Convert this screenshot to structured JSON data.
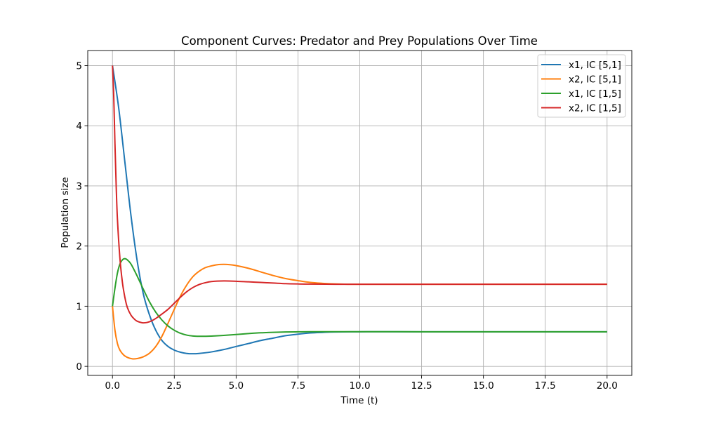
{
  "chart_data": {
    "type": "line",
    "title": "Component Curves: Predator and Prey Populations Over Time",
    "xlabel": "Time (t)",
    "ylabel": "Population size",
    "xlim": [
      -1.0,
      21.0
    ],
    "ylim": [
      -0.15,
      5.25
    ],
    "x_ticks": [
      0.0,
      2.5,
      5.0,
      7.5,
      10.0,
      12.5,
      15.0,
      17.5,
      20.0
    ],
    "x_tick_labels": [
      "0.0",
      "2.5",
      "5.0",
      "7.5",
      "10.0",
      "12.5",
      "15.0",
      "17.5",
      "20.0"
    ],
    "y_ticks": [
      0,
      1,
      2,
      3,
      4,
      5
    ],
    "y_tick_labels": [
      "0",
      "1",
      "2",
      "3",
      "4",
      "5"
    ],
    "grid": true,
    "legend_position": "top-right",
    "series": [
      {
        "name": "x1, IC [5,1]",
        "color": "#1f77b4",
        "points": [
          [
            0,
            5.0
          ],
          [
            0.25,
            4.3
          ],
          [
            0.5,
            3.4
          ],
          [
            0.75,
            2.5
          ],
          [
            1.0,
            1.75
          ],
          [
            1.25,
            1.2
          ],
          [
            1.5,
            0.85
          ],
          [
            1.75,
            0.6
          ],
          [
            2.0,
            0.43
          ],
          [
            2.25,
            0.33
          ],
          [
            2.5,
            0.27
          ],
          [
            2.75,
            0.235
          ],
          [
            3.0,
            0.215
          ],
          [
            3.25,
            0.21
          ],
          [
            3.5,
            0.215
          ],
          [
            4.0,
            0.24
          ],
          [
            4.5,
            0.28
          ],
          [
            5.0,
            0.33
          ],
          [
            5.5,
            0.38
          ],
          [
            6.0,
            0.43
          ],
          [
            6.5,
            0.47
          ],
          [
            7.0,
            0.51
          ],
          [
            7.5,
            0.535
          ],
          [
            8.0,
            0.555
          ],
          [
            8.5,
            0.565
          ],
          [
            9.0,
            0.572
          ],
          [
            10.0,
            0.575
          ],
          [
            11.0,
            0.576
          ],
          [
            12.5,
            0.575
          ],
          [
            15.0,
            0.575
          ],
          [
            17.5,
            0.575
          ],
          [
            20.0,
            0.575
          ]
        ]
      },
      {
        "name": "x2, IC [5,1]",
        "color": "#ff7f0e",
        "points": [
          [
            0,
            1.0
          ],
          [
            0.1,
            0.6
          ],
          [
            0.2,
            0.38
          ],
          [
            0.3,
            0.27
          ],
          [
            0.45,
            0.19
          ],
          [
            0.6,
            0.15
          ],
          [
            0.8,
            0.125
          ],
          [
            1.0,
            0.13
          ],
          [
            1.25,
            0.16
          ],
          [
            1.5,
            0.22
          ],
          [
            1.75,
            0.33
          ],
          [
            2.0,
            0.5
          ],
          [
            2.25,
            0.72
          ],
          [
            2.5,
            0.95
          ],
          [
            2.75,
            1.17
          ],
          [
            3.0,
            1.35
          ],
          [
            3.25,
            1.49
          ],
          [
            3.5,
            1.58
          ],
          [
            3.75,
            1.64
          ],
          [
            4.0,
            1.67
          ],
          [
            4.25,
            1.69
          ],
          [
            4.5,
            1.695
          ],
          [
            4.75,
            1.69
          ],
          [
            5.0,
            1.675
          ],
          [
            5.5,
            1.63
          ],
          [
            6.0,
            1.57
          ],
          [
            6.5,
            1.51
          ],
          [
            7.0,
            1.46
          ],
          [
            7.5,
            1.425
          ],
          [
            8.0,
            1.395
          ],
          [
            8.5,
            1.38
          ],
          [
            9.0,
            1.37
          ],
          [
            9.5,
            1.365
          ],
          [
            10.0,
            1.365
          ],
          [
            11.0,
            1.365
          ],
          [
            12.5,
            1.365
          ],
          [
            15.0,
            1.365
          ],
          [
            17.5,
            1.365
          ],
          [
            20.0,
            1.365
          ]
        ]
      },
      {
        "name": "x1, IC [1,5]",
        "color": "#2ca02c",
        "points": [
          [
            0,
            1.0
          ],
          [
            0.1,
            1.3
          ],
          [
            0.2,
            1.55
          ],
          [
            0.3,
            1.7
          ],
          [
            0.4,
            1.77
          ],
          [
            0.5,
            1.79
          ],
          [
            0.6,
            1.77
          ],
          [
            0.75,
            1.7
          ],
          [
            1.0,
            1.5
          ],
          [
            1.25,
            1.28
          ],
          [
            1.5,
            1.07
          ],
          [
            1.75,
            0.9
          ],
          [
            2.0,
            0.77
          ],
          [
            2.25,
            0.67
          ],
          [
            2.5,
            0.6
          ],
          [
            2.75,
            0.55
          ],
          [
            3.0,
            0.52
          ],
          [
            3.25,
            0.505
          ],
          [
            3.5,
            0.5
          ],
          [
            3.75,
            0.5
          ],
          [
            4.0,
            0.503
          ],
          [
            4.5,
            0.515
          ],
          [
            5.0,
            0.53
          ],
          [
            5.5,
            0.545
          ],
          [
            6.0,
            0.558
          ],
          [
            6.5,
            0.566
          ],
          [
            7.0,
            0.571
          ],
          [
            7.5,
            0.574
          ],
          [
            8.0,
            0.576
          ],
          [
            9.0,
            0.576
          ],
          [
            10.0,
            0.576
          ],
          [
            12.5,
            0.575
          ],
          [
            15.0,
            0.575
          ],
          [
            17.5,
            0.575
          ],
          [
            20.0,
            0.575
          ]
        ]
      },
      {
        "name": "x2, IC [1,5]",
        "color": "#d62728",
        "points": [
          [
            0,
            5.0
          ],
          [
            0.05,
            4.5
          ],
          [
            0.1,
            3.7
          ],
          [
            0.15,
            3.0
          ],
          [
            0.2,
            2.45
          ],
          [
            0.3,
            1.8
          ],
          [
            0.4,
            1.4
          ],
          [
            0.5,
            1.15
          ],
          [
            0.6,
            0.98
          ],
          [
            0.75,
            0.85
          ],
          [
            0.9,
            0.78
          ],
          [
            1.0,
            0.75
          ],
          [
            1.2,
            0.725
          ],
          [
            1.4,
            0.73
          ],
          [
            1.6,
            0.76
          ],
          [
            1.8,
            0.81
          ],
          [
            2.0,
            0.87
          ],
          [
            2.25,
            0.95
          ],
          [
            2.5,
            1.05
          ],
          [
            2.75,
            1.15
          ],
          [
            3.0,
            1.24
          ],
          [
            3.25,
            1.31
          ],
          [
            3.5,
            1.36
          ],
          [
            3.75,
            1.39
          ],
          [
            4.0,
            1.41
          ],
          [
            4.5,
            1.42
          ],
          [
            5.0,
            1.415
          ],
          [
            5.5,
            1.405
          ],
          [
            6.0,
            1.395
          ],
          [
            6.5,
            1.385
          ],
          [
            7.0,
            1.375
          ],
          [
            7.5,
            1.37
          ],
          [
            8.0,
            1.367
          ],
          [
            9.0,
            1.365
          ],
          [
            10.0,
            1.365
          ],
          [
            12.5,
            1.365
          ],
          [
            15.0,
            1.365
          ],
          [
            17.5,
            1.365
          ],
          [
            20.0,
            1.365
          ]
        ]
      }
    ]
  }
}
